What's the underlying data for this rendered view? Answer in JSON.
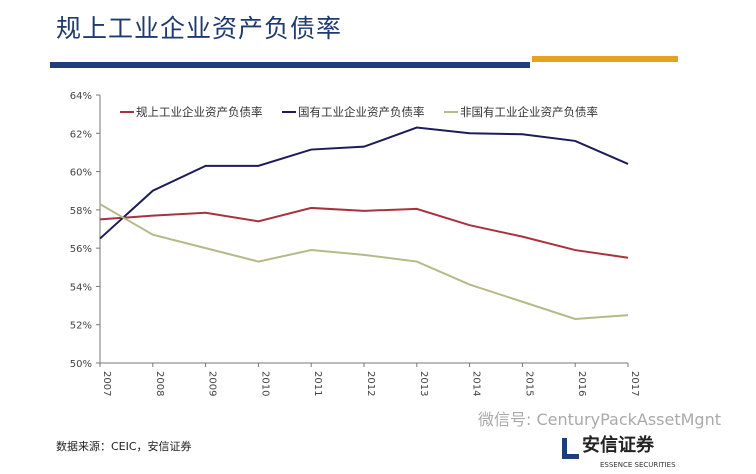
{
  "header": {
    "title": "规上工业企业资产负债率"
  },
  "footer": {
    "source": "数据来源：CEIC，安信证券",
    "watermark": "微信号: CenturyPackAssetMgnt",
    "logo_cn": "安信证券",
    "logo_en": "ESSENCE SECURITIES"
  },
  "chart_data": {
    "type": "line",
    "x": [
      "2007",
      "2008",
      "2009",
      "2010",
      "2011",
      "2012",
      "2013",
      "2014",
      "2015",
      "2016",
      "2017"
    ],
    "ylim": [
      50,
      64
    ],
    "yticks": [
      "50%",
      "52%",
      "54%",
      "56%",
      "58%",
      "60%",
      "62%",
      "64%"
    ],
    "legend_position": "top",
    "series": [
      {
        "name": "规上工业企业资产负债率",
        "color": "#a8323e",
        "values": [
          57.5,
          57.7,
          57.85,
          57.4,
          58.1,
          57.95,
          58.05,
          57.2,
          56.6,
          55.9,
          55.5
        ]
      },
      {
        "name": "国有工业企业资产负债率",
        "color": "#1c1c5a",
        "values": [
          56.5,
          59.0,
          60.3,
          60.3,
          61.15,
          61.3,
          62.3,
          62.0,
          61.95,
          61.6,
          60.4
        ]
      },
      {
        "name": "非国有工业企业资产负债率",
        "color": "#b5ba88",
        "values": [
          58.3,
          56.7,
          56.0,
          55.3,
          55.9,
          55.65,
          55.3,
          54.1,
          53.2,
          52.3,
          52.5
        ]
      }
    ]
  }
}
